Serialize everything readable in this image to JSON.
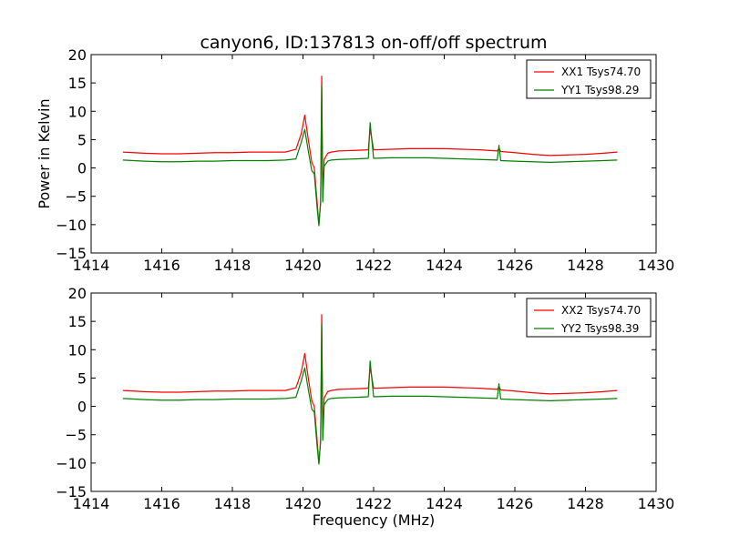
{
  "title": "canyon6, ID:137813 on-off/off spectrum",
  "xlabel": "Frequency (MHz)",
  "ylabel": "Power in Kelvin",
  "chart_data": [
    {
      "type": "line",
      "xlim": [
        1414,
        1430
      ],
      "ylim": [
        -15,
        20
      ],
      "x_ticks": [
        1414,
        1416,
        1418,
        1420,
        1422,
        1424,
        1426,
        1428,
        1430
      ],
      "y_ticks": [
        -15,
        -10,
        -5,
        0,
        5,
        10,
        15,
        20
      ],
      "grid": false,
      "legend_position": "top-right",
      "series": [
        {
          "name": "XX1 Tsys74.70",
          "color": "#ff0000",
          "x": [
            1414.9,
            1415.5,
            1416.0,
            1416.5,
            1417.0,
            1417.5,
            1418.0,
            1418.5,
            1419.0,
            1419.5,
            1419.8,
            1419.95,
            1420.05,
            1420.15,
            1420.25,
            1420.32,
            1420.4,
            1420.45,
            1420.5,
            1420.53,
            1420.56,
            1420.6,
            1420.7,
            1420.8,
            1421.0,
            1421.5,
            1421.85,
            1421.9,
            1422.0,
            1422.5,
            1423.0,
            1423.5,
            1424.0,
            1424.5,
            1425.0,
            1425.5,
            1425.55,
            1425.6,
            1426.0,
            1426.5,
            1427.0,
            1427.5,
            1428.0,
            1428.5,
            1428.9
          ],
          "y": [
            2.8,
            2.6,
            2.5,
            2.5,
            2.6,
            2.7,
            2.7,
            2.8,
            2.8,
            2.8,
            3.3,
            6.0,
            9.3,
            5.0,
            1.0,
            0.0,
            -6.0,
            -10.0,
            -6.0,
            16.2,
            -5.0,
            1.5,
            2.6,
            2.8,
            3.0,
            3.1,
            3.2,
            7.0,
            3.2,
            3.3,
            3.4,
            3.4,
            3.4,
            3.3,
            3.2,
            3.0,
            3.5,
            2.9,
            2.7,
            2.4,
            2.2,
            2.3,
            2.4,
            2.6,
            2.8
          ]
        },
        {
          "name": "YY1 Tsys98.29",
          "color": "#008000",
          "x": [
            1414.9,
            1415.5,
            1416.0,
            1416.5,
            1417.0,
            1417.5,
            1418.0,
            1418.5,
            1419.0,
            1419.5,
            1419.8,
            1419.95,
            1420.05,
            1420.15,
            1420.25,
            1420.32,
            1420.4,
            1420.45,
            1420.5,
            1420.53,
            1420.56,
            1420.6,
            1420.7,
            1420.8,
            1421.0,
            1421.5,
            1421.85,
            1421.9,
            1422.0,
            1422.5,
            1423.0,
            1423.5,
            1424.0,
            1424.5,
            1425.0,
            1425.5,
            1425.55,
            1425.6,
            1426.0,
            1426.5,
            1427.0,
            1427.5,
            1428.0,
            1428.5,
            1428.9
          ],
          "y": [
            1.4,
            1.2,
            1.1,
            1.1,
            1.2,
            1.2,
            1.3,
            1.3,
            1.3,
            1.4,
            1.6,
            4.5,
            6.8,
            3.0,
            -0.5,
            -1.0,
            -7.0,
            -10.2,
            -6.0,
            14.5,
            -6.0,
            0.3,
            1.2,
            1.4,
            1.5,
            1.6,
            1.7,
            8.0,
            1.7,
            1.8,
            1.8,
            1.8,
            1.7,
            1.6,
            1.5,
            1.4,
            4.0,
            1.3,
            1.2,
            1.1,
            1.0,
            1.1,
            1.2,
            1.3,
            1.4
          ]
        }
      ]
    },
    {
      "type": "line",
      "xlim": [
        1414,
        1430
      ],
      "ylim": [
        -15,
        20
      ],
      "x_ticks": [
        1414,
        1416,
        1418,
        1420,
        1422,
        1424,
        1426,
        1428,
        1430
      ],
      "y_ticks": [
        -15,
        -10,
        -5,
        0,
        5,
        10,
        15,
        20
      ],
      "grid": false,
      "legend_position": "top-right",
      "series": [
        {
          "name": "XX2 Tsys74.70",
          "color": "#ff0000",
          "x": [
            1414.9,
            1415.5,
            1416.0,
            1416.5,
            1417.0,
            1417.5,
            1418.0,
            1418.5,
            1419.0,
            1419.5,
            1419.8,
            1419.95,
            1420.05,
            1420.15,
            1420.25,
            1420.32,
            1420.4,
            1420.45,
            1420.5,
            1420.53,
            1420.56,
            1420.6,
            1420.7,
            1420.8,
            1421.0,
            1421.5,
            1421.85,
            1421.9,
            1422.0,
            1422.5,
            1423.0,
            1423.5,
            1424.0,
            1424.5,
            1425.0,
            1425.5,
            1425.55,
            1425.6,
            1426.0,
            1426.5,
            1427.0,
            1427.5,
            1428.0,
            1428.5,
            1428.9
          ],
          "y": [
            2.8,
            2.6,
            2.5,
            2.5,
            2.6,
            2.7,
            2.7,
            2.8,
            2.8,
            2.8,
            3.3,
            6.0,
            9.3,
            5.0,
            1.0,
            0.0,
            -6.0,
            -10.0,
            -6.0,
            16.2,
            -5.0,
            1.5,
            2.6,
            2.8,
            3.0,
            3.1,
            3.2,
            7.0,
            3.2,
            3.3,
            3.4,
            3.4,
            3.4,
            3.3,
            3.2,
            3.0,
            3.5,
            2.9,
            2.7,
            2.4,
            2.2,
            2.3,
            2.4,
            2.6,
            2.8
          ]
        },
        {
          "name": "YY2 Tsys98.39",
          "color": "#008000",
          "x": [
            1414.9,
            1415.5,
            1416.0,
            1416.5,
            1417.0,
            1417.5,
            1418.0,
            1418.5,
            1419.0,
            1419.5,
            1419.8,
            1419.95,
            1420.05,
            1420.15,
            1420.25,
            1420.32,
            1420.4,
            1420.45,
            1420.5,
            1420.53,
            1420.56,
            1420.6,
            1420.7,
            1420.8,
            1421.0,
            1421.5,
            1421.85,
            1421.9,
            1422.0,
            1422.5,
            1423.0,
            1423.5,
            1424.0,
            1424.5,
            1425.0,
            1425.5,
            1425.55,
            1425.6,
            1426.0,
            1426.5,
            1427.0,
            1427.5,
            1428.0,
            1428.5,
            1428.9
          ],
          "y": [
            1.4,
            1.2,
            1.1,
            1.1,
            1.2,
            1.2,
            1.3,
            1.3,
            1.3,
            1.4,
            1.6,
            4.5,
            6.8,
            3.0,
            -0.5,
            -1.0,
            -7.0,
            -10.2,
            -6.0,
            14.5,
            -6.0,
            0.3,
            1.2,
            1.4,
            1.5,
            1.6,
            1.7,
            8.0,
            1.7,
            1.8,
            1.8,
            1.8,
            1.7,
            1.6,
            1.5,
            1.4,
            4.0,
            1.3,
            1.2,
            1.1,
            1.0,
            1.1,
            1.2,
            1.3,
            1.4
          ]
        }
      ]
    }
  ]
}
